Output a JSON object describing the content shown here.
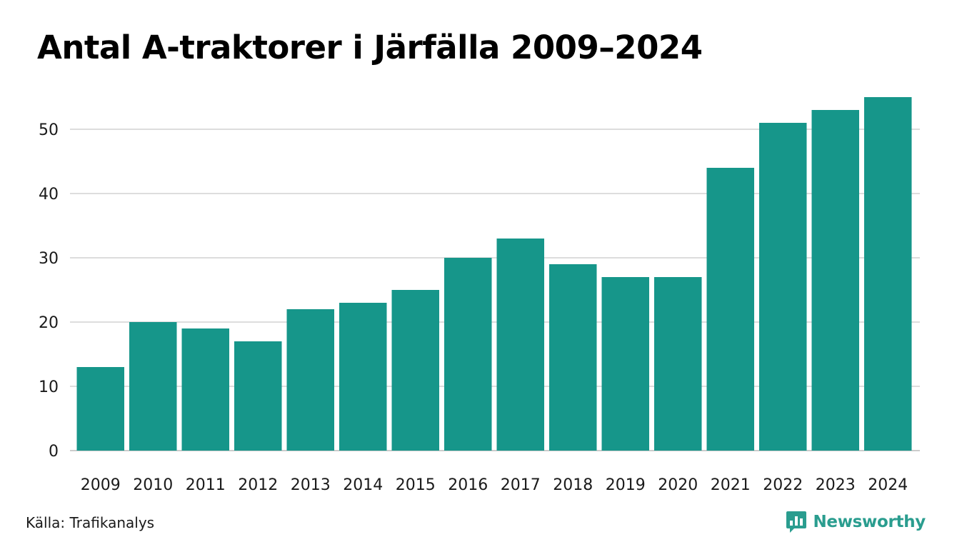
{
  "title": "Antal A-traktorer i Järfälla 2009–2024",
  "source": "Källa: Trafikanalys",
  "brand": {
    "name": "Newsworthy",
    "icon": "bar-chart-speech-bubble-icon",
    "color": "#2a9d8f"
  },
  "colors": {
    "bar": "#16968a",
    "grid": "#dddddd",
    "axis": "#cccccc",
    "text": "#1a1a1a"
  },
  "chart_data": {
    "type": "bar",
    "title": "Antal A-traktorer i Järfälla 2009–2024",
    "xlabel": "",
    "ylabel": "",
    "categories": [
      "2009",
      "2010",
      "2011",
      "2012",
      "2013",
      "2014",
      "2015",
      "2016",
      "2017",
      "2018",
      "2019",
      "2020",
      "2021",
      "2022",
      "2023",
      "2024"
    ],
    "values": [
      13,
      20,
      19,
      17,
      22,
      23,
      25,
      30,
      33,
      29,
      27,
      27,
      44,
      51,
      53,
      55
    ],
    "ylim": [
      0,
      55
    ],
    "yticks": [
      0,
      10,
      20,
      30,
      40,
      50
    ],
    "grid": true,
    "legend": "none"
  }
}
